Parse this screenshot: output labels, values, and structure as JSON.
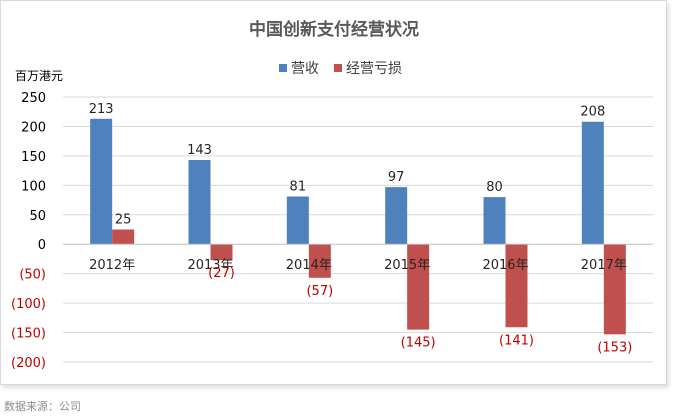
{
  "chart_data": {
    "type": "bar",
    "title": "中国创新支付经营状况",
    "ylabel": "百万港元",
    "categories": [
      "2012年",
      "2013年",
      "2014年",
      "2015年",
      "2016年",
      "2017年"
    ],
    "series": [
      {
        "name": "营收",
        "values": [
          213,
          143,
          81,
          97,
          80,
          208
        ],
        "color": "#4f81bd",
        "labels": [
          "213",
          "143",
          "81",
          "97",
          "80",
          "208"
        ]
      },
      {
        "name": "经营亏损",
        "values": [
          25,
          -27,
          -57,
          -145,
          -141,
          -153
        ],
        "color": "#c0504d",
        "labels": [
          "25",
          "(27)",
          "(57)",
          "(145)",
          "(141)",
          "(153)"
        ]
      }
    ],
    "ylim": [
      -200,
      250
    ],
    "yticks": [
      250,
      200,
      150,
      100,
      50,
      0,
      -50,
      -100,
      -150,
      -200
    ],
    "ytick_labels": [
      "250",
      "200",
      "150",
      "100",
      "50",
      "0",
      "(50)",
      "(100)",
      "(150)",
      "(200)"
    ],
    "negative_label_color": "#c00000",
    "grid": true,
    "legend_position": "top-center"
  },
  "footer": {
    "source": "数据来源：公司"
  }
}
